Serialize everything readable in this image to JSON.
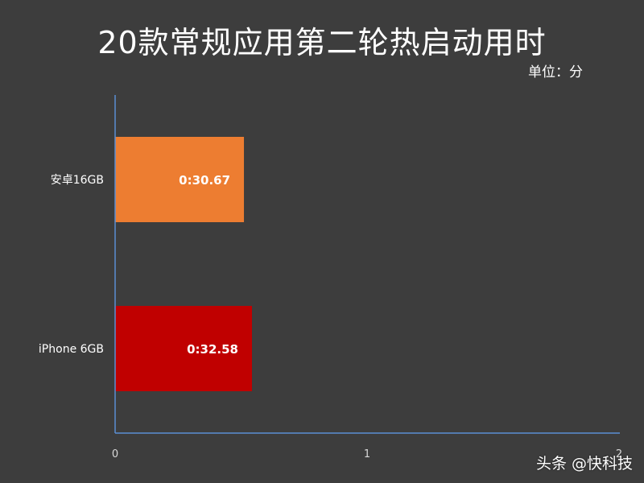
{
  "chart_data": {
    "type": "bar",
    "orientation": "horizontal",
    "title": "20款常规应用第二轮热启动用时",
    "unit_label": "单位：分",
    "categories": [
      "安卓16GB",
      "iPhone 6GB"
    ],
    "values": [
      0.5113,
      0.5431
    ],
    "value_labels": [
      "0:30.67",
      "0:32.58"
    ],
    "colors": [
      "#ed7d31",
      "#c00000"
    ],
    "xlim": [
      0,
      2
    ],
    "x_ticks": [
      "0",
      "1",
      "2"
    ],
    "grid": false
  },
  "watermark": "头条 @快科技"
}
